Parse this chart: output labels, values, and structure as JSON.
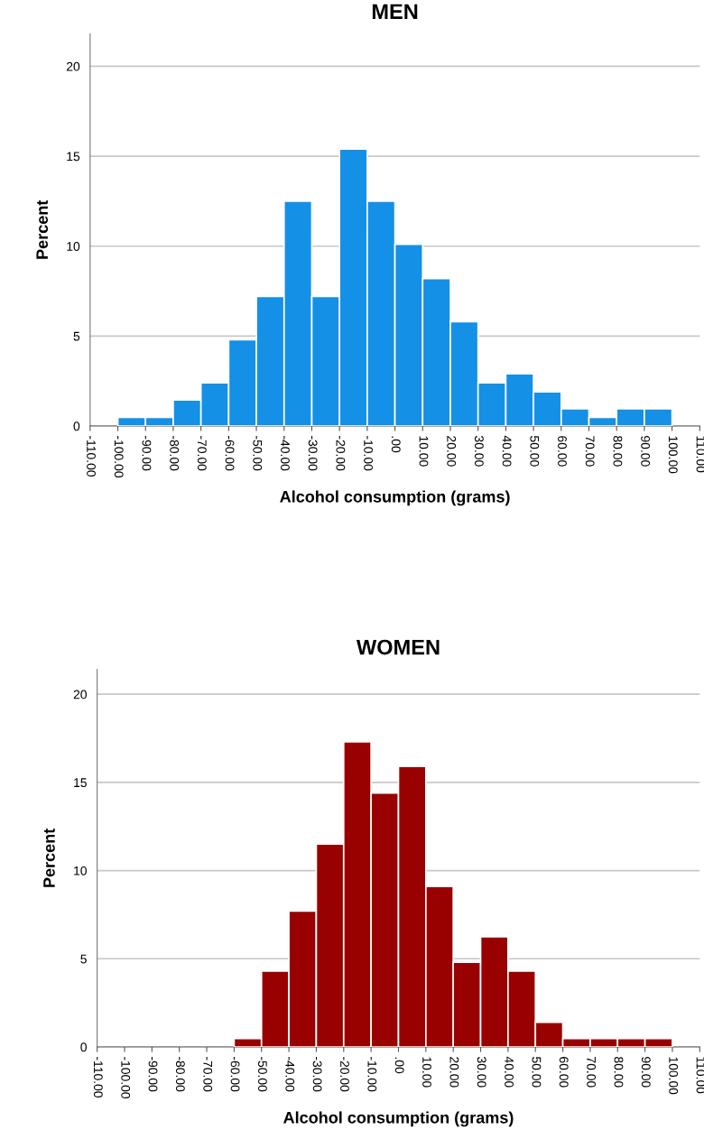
{
  "chart_data": [
    {
      "type": "histogram",
      "title": "MEN",
      "xlabel": "Alcohol consumption (grams)",
      "ylabel": "Percent",
      "bins": [
        -100,
        -90,
        -80,
        -70,
        -60,
        -50,
        -40,
        -30,
        -20,
        -10,
        0,
        10,
        20,
        30,
        40,
        50,
        60,
        70,
        80,
        90,
        100
      ],
      "values": [
        0.48,
        0.48,
        1.45,
        2.4,
        4.8,
        7.2,
        12.5,
        7.2,
        15.4,
        12.5,
        10.1,
        8.2,
        5.8,
        2.4,
        2.9,
        1.9,
        0.96,
        0.48,
        0.96,
        0.96
      ],
      "color": "#1490e6",
      "xlim": [
        -110,
        110
      ],
      "xticks": [
        {
          "value": -110,
          "label": "-110.00"
        },
        {
          "value": -100,
          "label": "-100.00"
        },
        {
          "value": -90,
          "label": "-90.00"
        },
        {
          "value": -80,
          "label": "-80.00"
        },
        {
          "value": -70,
          "label": "-70.00"
        },
        {
          "value": -60,
          "label": "-60.00"
        },
        {
          "value": -50,
          "label": "-50.00"
        },
        {
          "value": -40,
          "label": "-40.00"
        },
        {
          "value": -30,
          "label": "-30.00"
        },
        {
          "value": -20,
          "label": "-20.00"
        },
        {
          "value": -10,
          "label": "-10.00"
        },
        {
          "value": 0,
          "label": ".00"
        },
        {
          "value": 10,
          "label": "10.00"
        },
        {
          "value": 20,
          "label": "20.00"
        },
        {
          "value": 30,
          "label": "30.00"
        },
        {
          "value": 40,
          "label": "40.00"
        },
        {
          "value": 50,
          "label": "50.00"
        },
        {
          "value": 60,
          "label": "60.00"
        },
        {
          "value": 70,
          "label": "70.00"
        },
        {
          "value": 80,
          "label": "80.00"
        },
        {
          "value": 90,
          "label": "90.00"
        },
        {
          "value": 100,
          "label": "100.00"
        },
        {
          "value": 110,
          "label": "110.00"
        }
      ],
      "ylim": [
        0,
        21.8
      ],
      "yticks": [
        0,
        5,
        10,
        15,
        20
      ],
      "grid": "y"
    },
    {
      "type": "histogram",
      "title": "WOMEN",
      "xlabel": "Alcohol consumption (grams)",
      "ylabel": "Percent",
      "bins": [
        -100,
        -90,
        -80,
        -70,
        -60,
        -50,
        -40,
        -30,
        -20,
        -10,
        0,
        10,
        20,
        30,
        40,
        50,
        60,
        70,
        80,
        90,
        100
      ],
      "values": [
        0,
        0,
        0,
        0,
        0.48,
        4.3,
        7.7,
        11.5,
        17.3,
        14.4,
        15.9,
        9.1,
        4.8,
        6.25,
        4.3,
        1.4,
        0.48,
        0.48,
        0.48,
        0.48
      ],
      "color": "#990000",
      "xlim": [
        -110,
        110
      ],
      "xticks": [
        {
          "value": -110,
          "label": "-110.00"
        },
        {
          "value": -100,
          "label": "-100.00"
        },
        {
          "value": -90,
          "label": "-90.00"
        },
        {
          "value": -80,
          "label": "-80.00"
        },
        {
          "value": -70,
          "label": "-70.00"
        },
        {
          "value": -60,
          "label": "-60.00"
        },
        {
          "value": -50,
          "label": "-50.00"
        },
        {
          "value": -40,
          "label": "-40.00"
        },
        {
          "value": -30,
          "label": "-30.00"
        },
        {
          "value": -20,
          "label": "-20.00"
        },
        {
          "value": -10,
          "label": "-10.00"
        },
        {
          "value": 0,
          "label": ".00"
        },
        {
          "value": 10,
          "label": "10.00"
        },
        {
          "value": 20,
          "label": "20.00"
        },
        {
          "value": 30,
          "label": "30.00"
        },
        {
          "value": 40,
          "label": "40.00"
        },
        {
          "value": 50,
          "label": "50.00"
        },
        {
          "value": 60,
          "label": "60.00"
        },
        {
          "value": 70,
          "label": "70.00"
        },
        {
          "value": 80,
          "label": "80.00"
        },
        {
          "value": 90,
          "label": "90.00"
        },
        {
          "value": 100,
          "label": "100.00"
        },
        {
          "value": 110,
          "label": "110.00"
        }
      ],
      "ylim": [
        0,
        21.4
      ],
      "yticks": [
        0,
        5,
        10,
        15,
        20
      ],
      "grid": "y"
    }
  ]
}
